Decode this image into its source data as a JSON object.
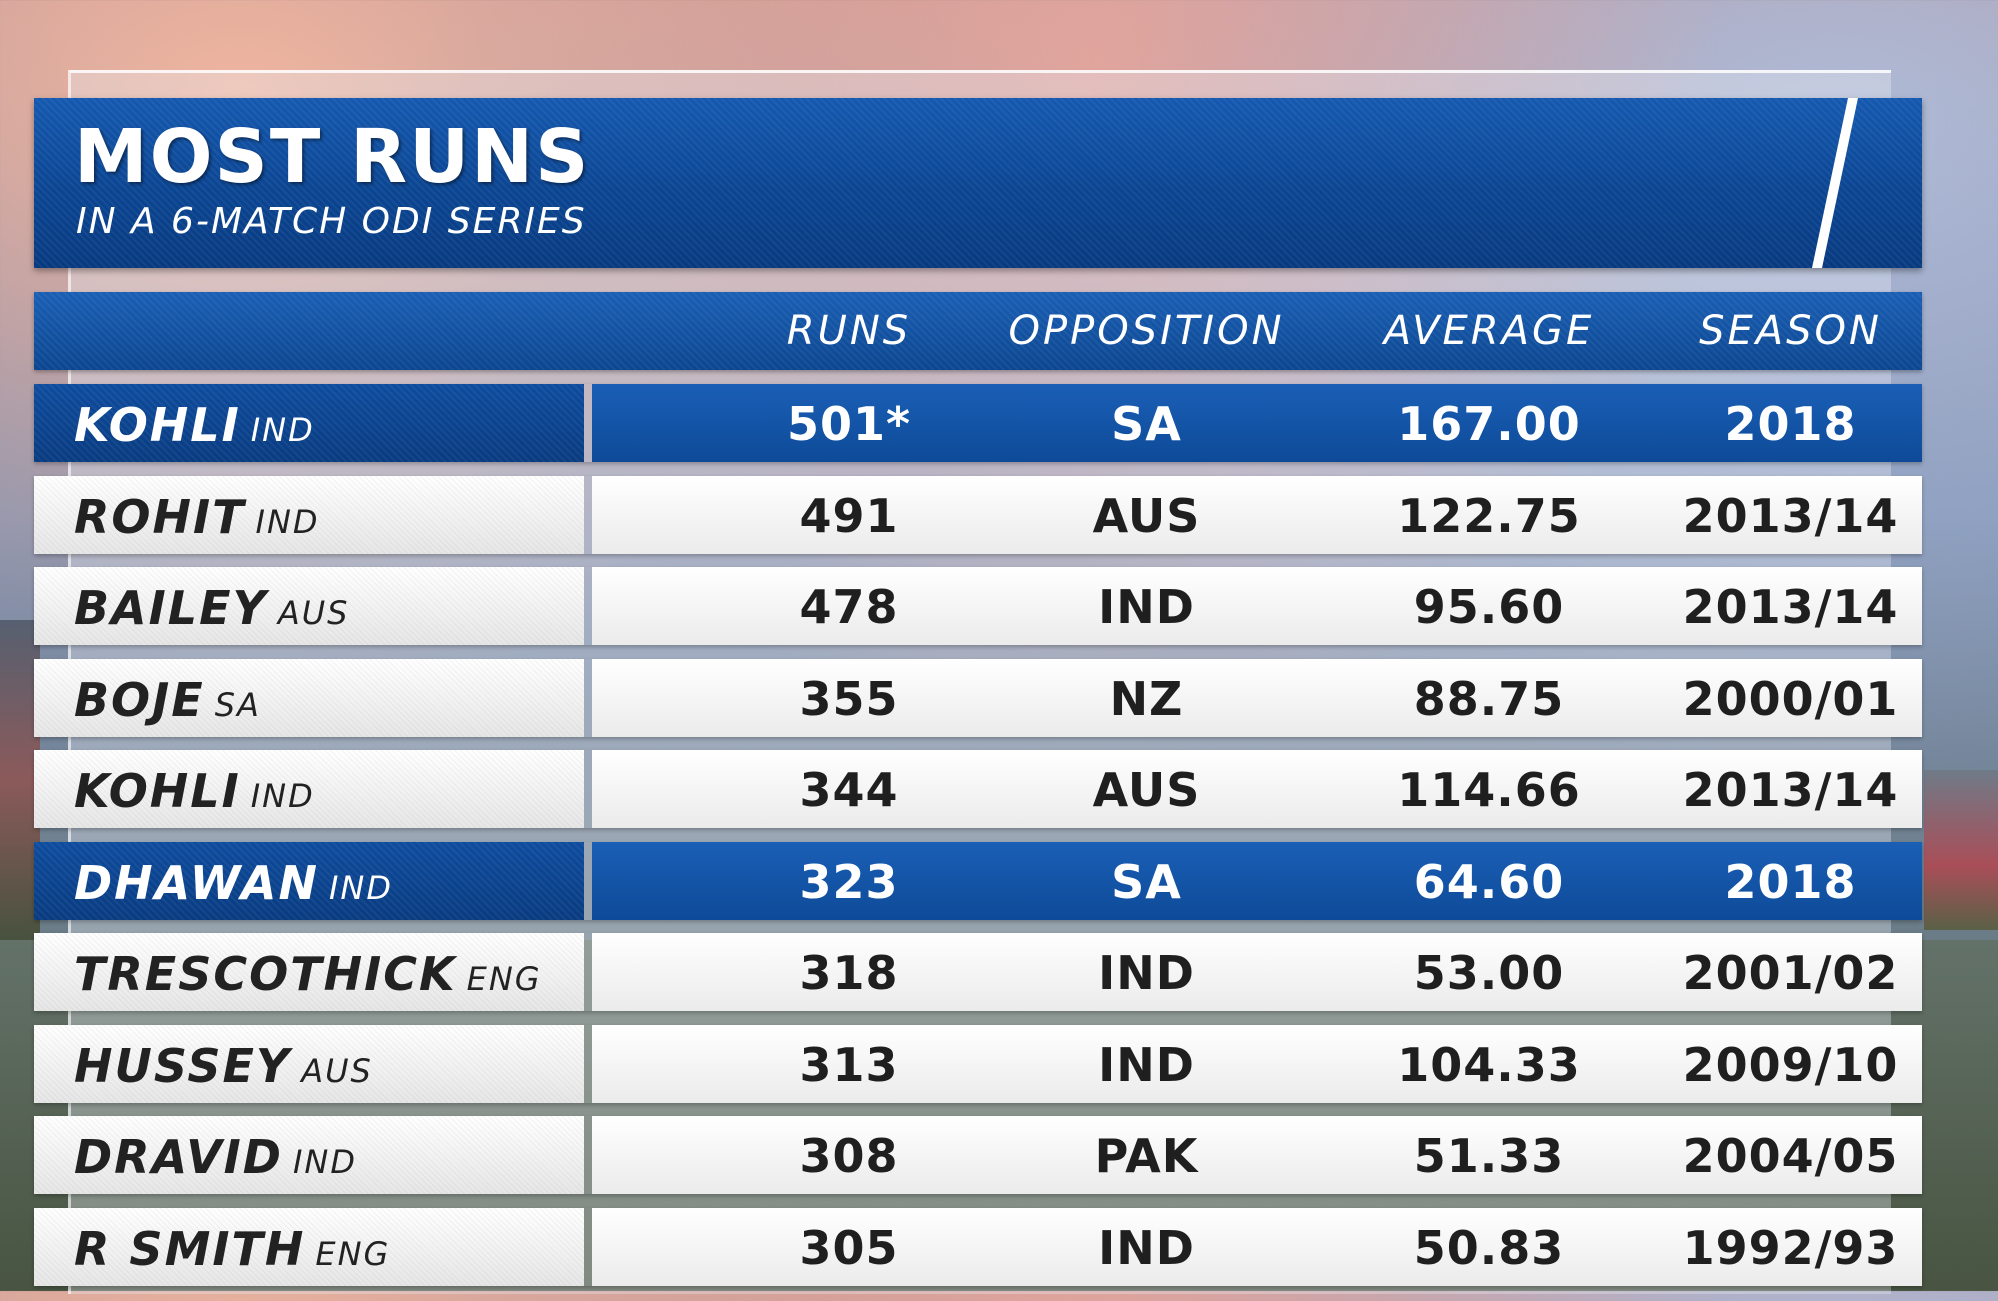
{
  "title": {
    "main": "MOST RUNS",
    "subtitle": "IN A 6-MATCH ODI SERIES"
  },
  "columns": {
    "runs": "RUNS",
    "opposition": "OPPOSITION",
    "average": "AVERAGE",
    "season": "SEASON"
  },
  "highlight_color": "#0e4c9e",
  "rows": [
    {
      "name": "KOHLI",
      "country": "IND",
      "runs": "501*",
      "opposition": "SA",
      "average": "167.00",
      "season": "2018",
      "highlight": true
    },
    {
      "name": "ROHIT",
      "country": "IND",
      "runs": "491",
      "opposition": "AUS",
      "average": "122.75",
      "season": "2013/14",
      "highlight": false
    },
    {
      "name": "BAILEY",
      "country": "AUS",
      "runs": "478",
      "opposition": "IND",
      "average": "95.60",
      "season": "2013/14",
      "highlight": false
    },
    {
      "name": "BOJE",
      "country": "SA",
      "runs": "355",
      "opposition": "NZ",
      "average": "88.75",
      "season": "2000/01",
      "highlight": false
    },
    {
      "name": "KOHLI",
      "country": "IND",
      "runs": "344",
      "opposition": "AUS",
      "average": "114.66",
      "season": "2013/14",
      "highlight": false
    },
    {
      "name": "DHAWAN",
      "country": "IND",
      "runs": "323",
      "opposition": "SA",
      "average": "64.60",
      "season": "2018",
      "highlight": true
    },
    {
      "name": "TRESCOTHICK",
      "country": "ENG",
      "runs": "318",
      "opposition": "IND",
      "average": "53.00",
      "season": "2001/02",
      "highlight": false
    },
    {
      "name": "HUSSEY",
      "country": "AUS",
      "runs": "313",
      "opposition": "IND",
      "average": "104.33",
      "season": "2009/10",
      "highlight": false
    },
    {
      "name": "DRAVID",
      "country": "IND",
      "runs": "308",
      "opposition": "PAK",
      "average": "51.33",
      "season": "2004/05",
      "highlight": false
    },
    {
      "name": "R SMITH",
      "country": "ENG",
      "runs": "305",
      "opposition": "IND",
      "average": "50.83",
      "season": "1992/93",
      "highlight": false
    }
  ]
}
